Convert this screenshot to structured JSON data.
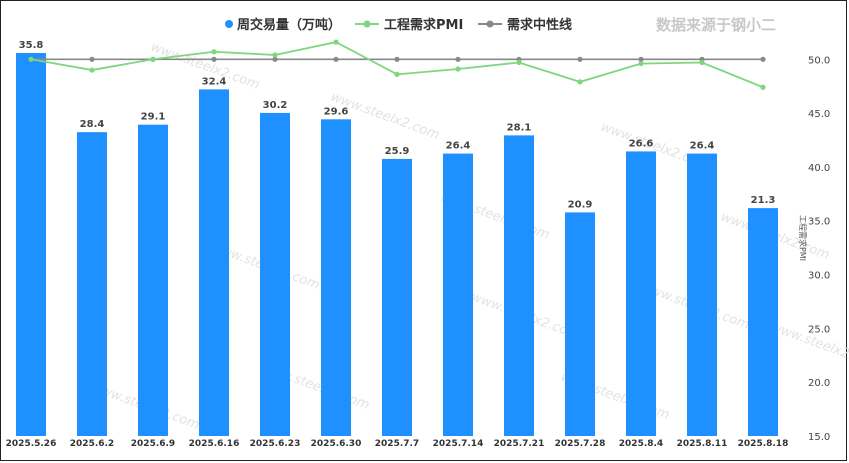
{
  "chart_data": {
    "type": "bar",
    "categories": [
      "2025.5.26",
      "2025.6.2",
      "2025.6.9",
      "2025.6.16",
      "2025.6.23",
      "2025.6.30",
      "2025.7.7",
      "2025.7.14",
      "2025.7.21",
      "2025.7.28",
      "2025.8.4",
      "2025.8.11",
      "2025.8.18"
    ],
    "series": [
      {
        "name": "周交易量（万吨）",
        "type": "bar",
        "axis": "left",
        "color": "#1e90ff",
        "values": [
          35.8,
          28.4,
          29.1,
          32.4,
          30.2,
          29.6,
          25.9,
          26.4,
          28.1,
          20.9,
          26.6,
          26.4,
          21.3
        ]
      },
      {
        "name": "工程需求PMI",
        "type": "line",
        "axis": "right",
        "color": "#7ed67e",
        "values": [
          50.0,
          49.0,
          50.0,
          50.7,
          50.4,
          51.6,
          48.6,
          49.1,
          49.7,
          47.9,
          49.6,
          49.7,
          47.4
        ]
      },
      {
        "name": "需求中性线",
        "type": "line",
        "axis": "right",
        "color": "#888888",
        "values": [
          50,
          50,
          50,
          50,
          50,
          50,
          50,
          50,
          50,
          50,
          50,
          50,
          50
        ]
      }
    ],
    "left_axis": {
      "ylim": [
        0,
        35.8
      ]
    },
    "right_axis": {
      "ylim": [
        15.0,
        53.0
      ],
      "ticks": [
        "50.0",
        "45.0",
        "40.0",
        "35.0",
        "30.0",
        "25.0",
        "20.0",
        "15.0"
      ],
      "label": "工程需求PMI"
    },
    "legend": "top-center",
    "grid": false
  },
  "watermark": {
    "corner_text": "数据来源于钢小二",
    "repeated_url": "www.steelx2.com"
  }
}
